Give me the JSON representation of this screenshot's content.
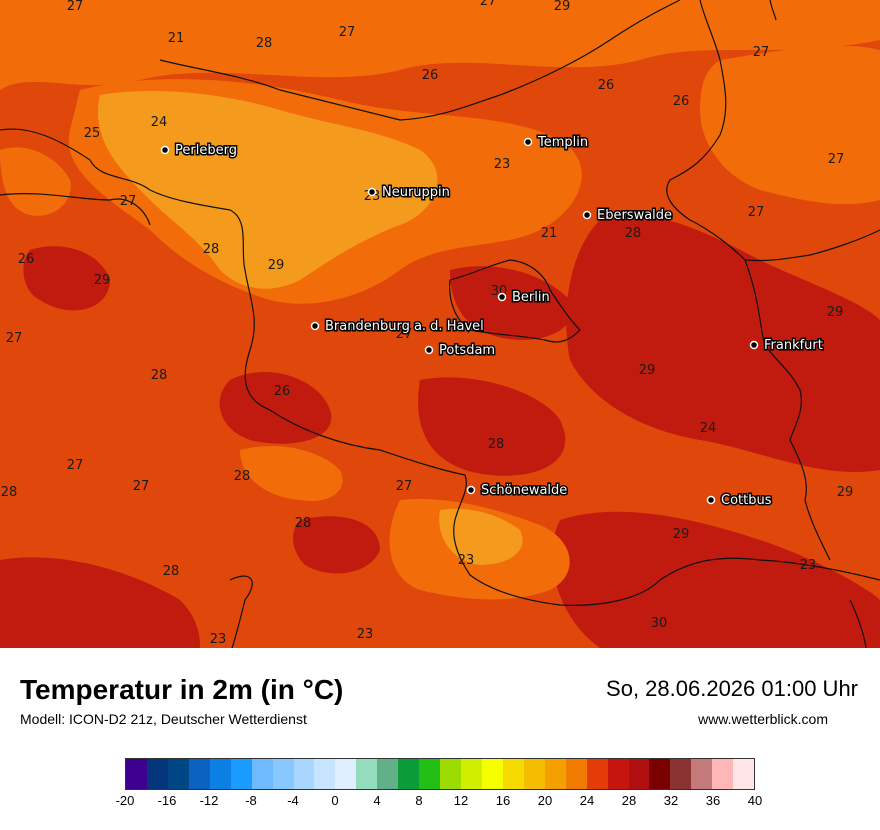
{
  "title": "Temperatur in 2m (in °C)",
  "model": "Modell: ICON-D2 21z, Deutscher Wetterdienst",
  "datetime": "So, 28.06.2026 01:00 Uhr",
  "website": "www.wetterblick.com",
  "cities": [
    {
      "name": "Perleberg"
    },
    {
      "name": "Templin"
    },
    {
      "name": "Neuruppin"
    },
    {
      "name": "Eberswalde"
    },
    {
      "name": "Berlin"
    },
    {
      "name": "Brandenburg a. d. Havel"
    },
    {
      "name": "Potsdam"
    },
    {
      "name": "Frankfurt"
    },
    {
      "name": "Schönewalde"
    },
    {
      "name": "Cottbus"
    }
  ],
  "values": [
    "27",
    "27",
    "29",
    "21",
    "28",
    "27",
    "26",
    "26",
    "26",
    "27",
    "25",
    "24",
    "23",
    "27",
    "27",
    "23",
    "28",
    "27",
    "26",
    "28",
    "21",
    "29",
    "29",
    "30",
    "29",
    "27",
    "27",
    "29",
    "28",
    "24",
    "26",
    "28",
    "27",
    "27",
    "28",
    "27",
    "28",
    "29",
    "28",
    "23",
    "23",
    "29",
    "30",
    "28",
    "23",
    "23"
  ],
  "legend": {
    "colors": [
      "#3d008f",
      "#05357a",
      "#004584",
      "#0b62c0",
      "#0b7fe4",
      "#1a9bff",
      "#6fb9ff",
      "#89c8ff",
      "#a8d6ff",
      "#c6e3ff",
      "#dfefff",
      "#95dcbf",
      "#62b088",
      "#0b9c3a",
      "#22bf16",
      "#9ddc00",
      "#cfee00",
      "#f5ff00",
      "#f4da00",
      "#f4bd00",
      "#f3a000",
      "#f07b00",
      "#e43c09",
      "#c6150e",
      "#af0f0f",
      "#7a0000",
      "#8b3333",
      "#c47a7a",
      "#ffb6b6",
      "#ffe5e5"
    ],
    "ticks": [
      "-20",
      "-16",
      "-12",
      "-8",
      "-4",
      "0",
      "4",
      "8",
      "12",
      "16",
      "20",
      "24",
      "28",
      "32",
      "36",
      "40"
    ]
  }
}
